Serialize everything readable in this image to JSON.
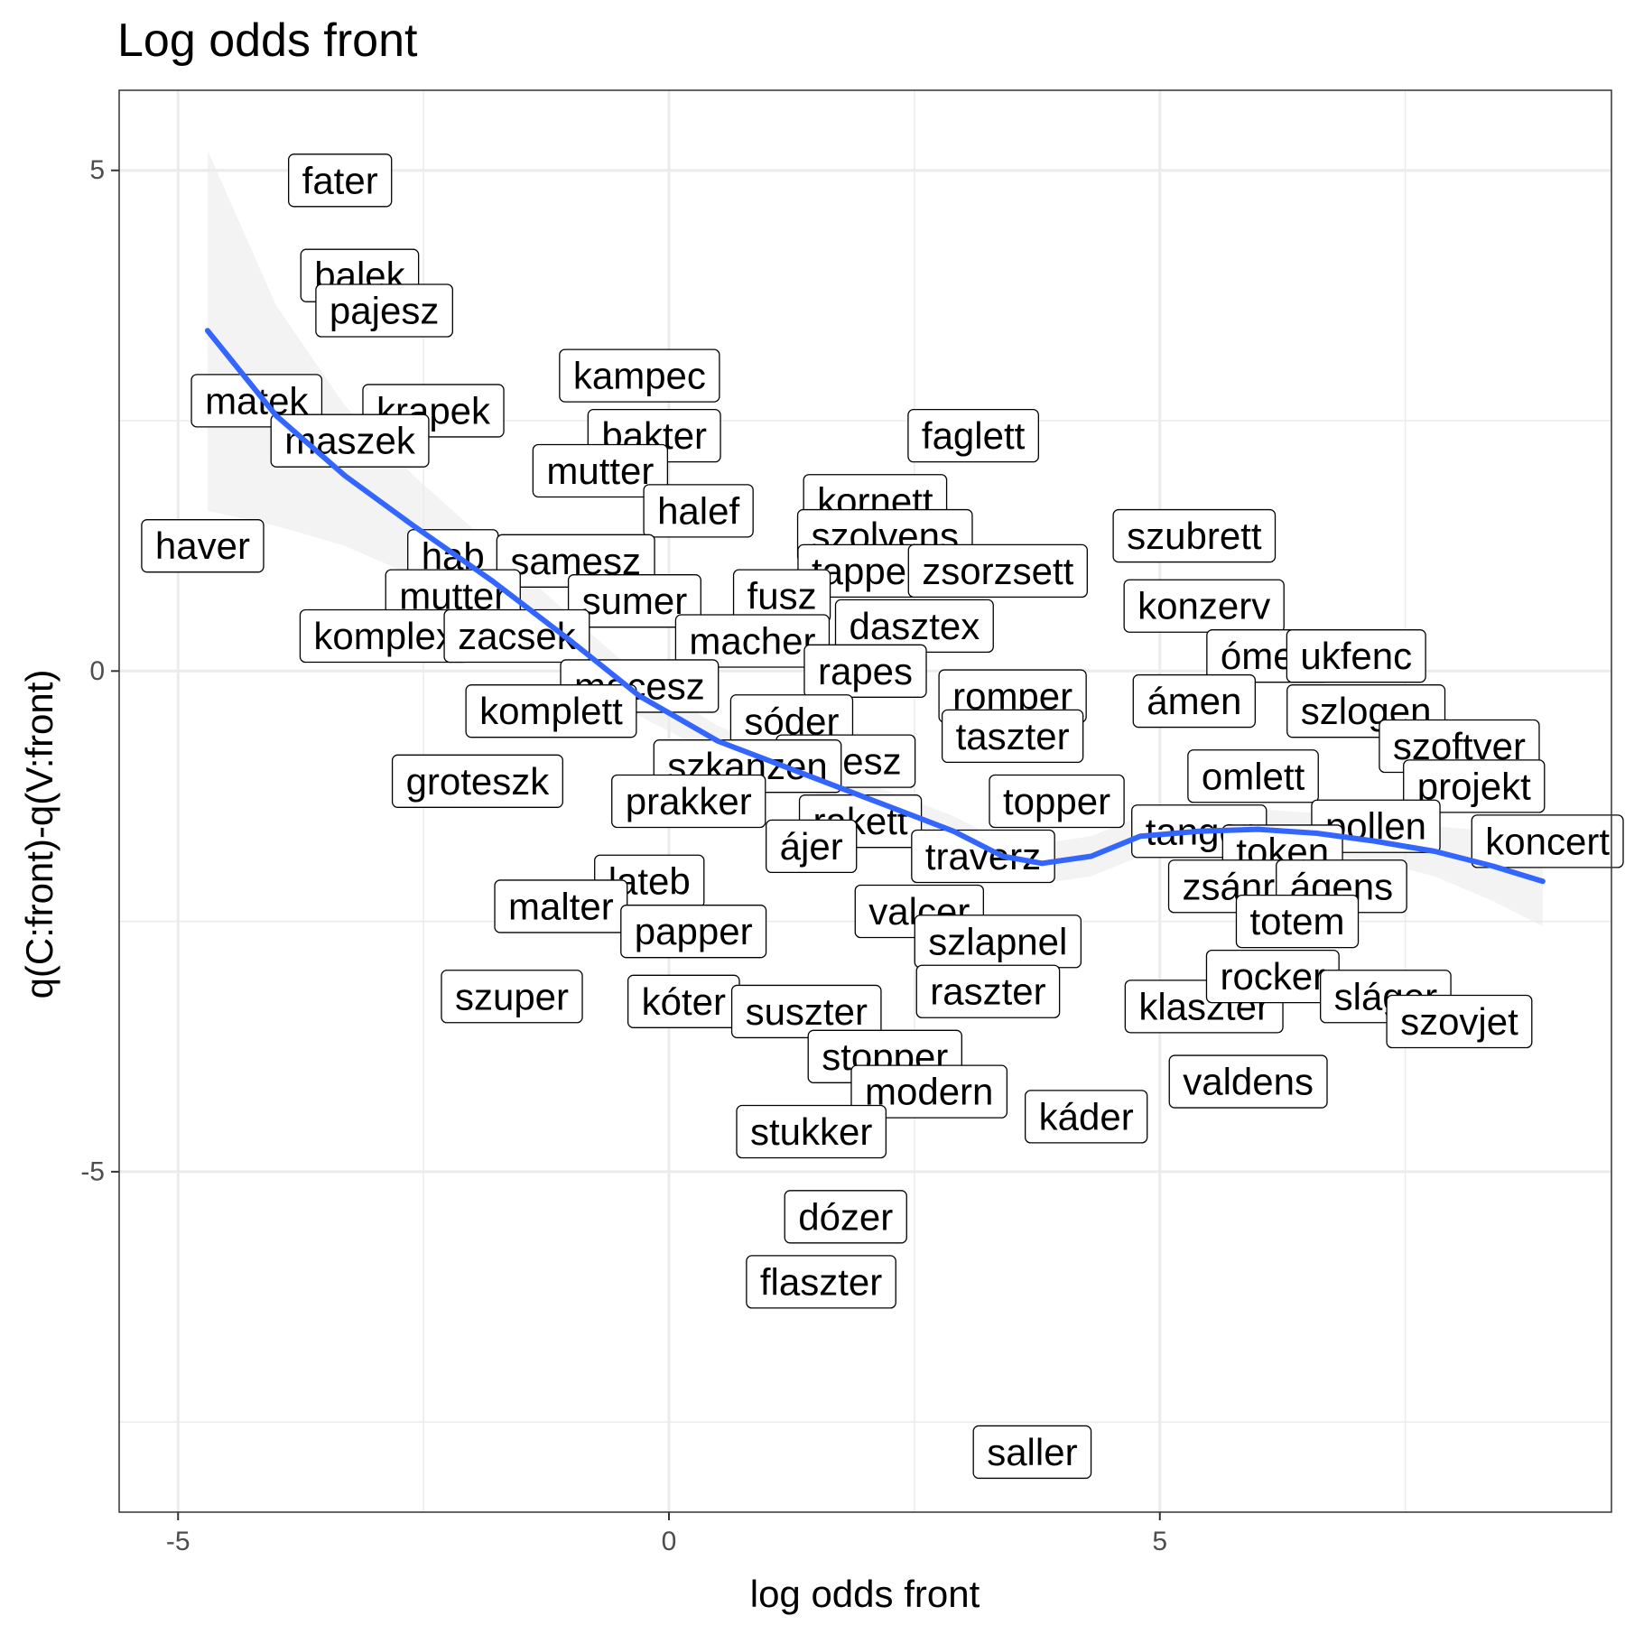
{
  "chart_data": {
    "type": "scatter",
    "title": "Log odds front",
    "xlabel": "log odds front",
    "ylabel": "q(C:front)-q(V:front)",
    "xlim": [
      -5.6,
      9.6
    ],
    "ylim": [
      -8.4,
      5.8
    ],
    "xticks": [
      -5,
      0,
      5
    ],
    "yticks": [
      5,
      0,
      -5
    ],
    "xtick_labels": [
      "-5",
      "0",
      "5"
    ],
    "ytick_labels": [
      "5",
      "0",
      "-5"
    ],
    "grid": true,
    "colors": {
      "smooth": "#3366ff",
      "ribbon": "#ebebeb",
      "grid": "#ebebeb",
      "frame": "#333333"
    },
    "points": [
      {
        "label": "fater",
        "x": -3.35,
        "y": 4.9
      },
      {
        "label": "balek",
        "x": -3.15,
        "y": 3.95
      },
      {
        "label": "pajesz",
        "x": -2.9,
        "y": 3.6
      },
      {
        "label": "kampec",
        "x": -0.3,
        "y": 2.95
      },
      {
        "label": "matek",
        "x": -4.2,
        "y": 2.7
      },
      {
        "label": "krapek",
        "x": -2.4,
        "y": 2.6
      },
      {
        "label": "maszek",
        "x": -3.25,
        "y": 2.3
      },
      {
        "label": "bakter",
        "x": -0.15,
        "y": 2.35
      },
      {
        "label": "faglett",
        "x": 3.1,
        "y": 2.35
      },
      {
        "label": "mutter",
        "x": -0.7,
        "y": 2.0
      },
      {
        "label": "kornett",
        "x": 2.1,
        "y": 1.7
      },
      {
        "label": "halef",
        "x": 0.3,
        "y": 1.6
      },
      {
        "label": "haver",
        "x": -4.75,
        "y": 1.25
      },
      {
        "label": "szolvens",
        "x": 2.2,
        "y": 1.35
      },
      {
        "label": "szubrett",
        "x": 5.35,
        "y": 1.35
      },
      {
        "label": "hab",
        "x": -2.2,
        "y": 1.15
      },
      {
        "label": "samesz",
        "x": -0.95,
        "y": 1.1
      },
      {
        "label": "tapper",
        "x": 2.0,
        "y": 1.0
      },
      {
        "label": "zsorzsett",
        "x": 3.35,
        "y": 1.0
      },
      {
        "label": "mutter",
        "x": -2.2,
        "y": 0.75
      },
      {
        "label": "sumer",
        "x": -0.35,
        "y": 0.7
      },
      {
        "label": "fusz",
        "x": 1.15,
        "y": 0.75
      },
      {
        "label": "konzerv",
        "x": 5.45,
        "y": 0.65
      },
      {
        "label": "komplex",
        "x": -2.9,
        "y": 0.35
      },
      {
        "label": "zacsek",
        "x": -1.55,
        "y": 0.35
      },
      {
        "label": "macher",
        "x": 0.85,
        "y": 0.3
      },
      {
        "label": "dasztex",
        "x": 2.5,
        "y": 0.45
      },
      {
        "label": "ómen",
        "x": 6.1,
        "y": 0.15
      },
      {
        "label": "ukfenc",
        "x": 7.0,
        "y": 0.15
      },
      {
        "label": "rapes",
        "x": 2.0,
        "y": 0.0
      },
      {
        "label": "macesz",
        "x": -0.3,
        "y": -0.15
      },
      {
        "label": "ámen",
        "x": 5.35,
        "y": -0.3
      },
      {
        "label": "romper",
        "x": 3.5,
        "y": -0.25
      },
      {
        "label": "komplett",
        "x": -1.2,
        "y": -0.4
      },
      {
        "label": "szlogen",
        "x": 7.1,
        "y": -0.4
      },
      {
        "label": "sóder",
        "x": 1.25,
        "y": -0.5
      },
      {
        "label": "taszter",
        "x": 3.5,
        "y": -0.65
      },
      {
        "label": "szoftver",
        "x": 8.05,
        "y": -0.75
      },
      {
        "label": "tábesz",
        "x": 1.8,
        "y": -0.9
      },
      {
        "label": "szkanzen",
        "x": 0.8,
        "y": -0.95
      },
      {
        "label": "omlett",
        "x": 5.95,
        "y": -1.05
      },
      {
        "label": "groteszk",
        "x": -1.95,
        "y": -1.1
      },
      {
        "label": "projekt",
        "x": 8.2,
        "y": -1.15
      },
      {
        "label": "topper",
        "x": 3.95,
        "y": -1.3
      },
      {
        "label": "prakker",
        "x": 0.2,
        "y": -1.3
      },
      {
        "label": "rakett",
        "x": 1.95,
        "y": -1.5
      },
      {
        "label": "pollen",
        "x": 7.2,
        "y": -1.55
      },
      {
        "label": "tanger",
        "x": 5.4,
        "y": -1.6
      },
      {
        "label": "ájer",
        "x": 1.45,
        "y": -1.75
      },
      {
        "label": "traverz",
        "x": 3.2,
        "y": -1.85
      },
      {
        "label": "koncert",
        "x": 9.0,
        "y": -1.7
      },
      {
        "label": "token",
        "x": 6.25,
        "y": -1.8
      },
      {
        "label": "lateb",
        "x": -0.2,
        "y": -2.1
      },
      {
        "label": "zsánr",
        "x": 5.7,
        "y": -2.15
      },
      {
        "label": "ágens",
        "x": 6.85,
        "y": -2.15
      },
      {
        "label": "malter",
        "x": -1.1,
        "y": -2.35
      },
      {
        "label": "valcer",
        "x": 2.55,
        "y": -2.4
      },
      {
        "label": "papper",
        "x": 0.25,
        "y": -2.6
      },
      {
        "label": "totem",
        "x": 6.4,
        "y": -2.5
      },
      {
        "label": "szlapnel",
        "x": 3.35,
        "y": -2.7
      },
      {
        "label": "szuper",
        "x": -1.6,
        "y": -3.25
      },
      {
        "label": "kóter",
        "x": 0.15,
        "y": -3.3
      },
      {
        "label": "suszter",
        "x": 1.4,
        "y": -3.4
      },
      {
        "label": "raszter",
        "x": 3.25,
        "y": -3.2
      },
      {
        "label": "klaszter",
        "x": 5.45,
        "y": -3.35
      },
      {
        "label": "rocker",
        "x": 6.15,
        "y": -3.05
      },
      {
        "label": "sláger",
        "x": 7.3,
        "y": -3.25
      },
      {
        "label": "szovjet",
        "x": 8.05,
        "y": -3.5
      },
      {
        "label": "stopper",
        "x": 2.2,
        "y": -3.85
      },
      {
        "label": "valdens",
        "x": 5.9,
        "y": -4.1
      },
      {
        "label": "modern",
        "x": 2.65,
        "y": -4.2
      },
      {
        "label": "káder",
        "x": 4.25,
        "y": -4.45
      },
      {
        "label": "stukker",
        "x": 1.45,
        "y": -4.6
      },
      {
        "label": "dózer",
        "x": 1.8,
        "y": -5.45
      },
      {
        "label": "flaszter",
        "x": 1.55,
        "y": -6.1
      },
      {
        "label": "saller",
        "x": 3.7,
        "y": -7.8
      }
    ],
    "smooth": {
      "x": [
        -4.7,
        -4.0,
        -3.3,
        -2.6,
        -1.8,
        -1.0,
        -0.3,
        0.5,
        1.3,
        2.1,
        2.9,
        3.4,
        3.8,
        4.3,
        4.8,
        5.4,
        6.0,
        6.6,
        7.2,
        7.8,
        8.4,
        8.9
      ],
      "y": [
        3.4,
        2.55,
        1.95,
        1.45,
        0.9,
        0.3,
        -0.25,
        -0.7,
        -1.0,
        -1.3,
        -1.6,
        -1.85,
        -1.92,
        -1.85,
        -1.65,
        -1.6,
        -1.58,
        -1.62,
        -1.7,
        -1.8,
        -1.95,
        -2.1
      ],
      "lower": [
        1.6,
        1.45,
        1.25,
        0.95,
        0.55,
        0.05,
        -0.45,
        -0.85,
        -1.15,
        -1.45,
        -1.75,
        -2.0,
        -2.12,
        -2.05,
        -1.85,
        -1.8,
        -1.78,
        -1.82,
        -1.9,
        -2.05,
        -2.3,
        -2.55
      ],
      "upper": [
        5.2,
        3.65,
        2.65,
        1.95,
        1.25,
        0.55,
        -0.05,
        -0.55,
        -0.85,
        -1.15,
        -1.45,
        -1.7,
        -1.72,
        -1.65,
        -1.45,
        -1.4,
        -1.38,
        -1.42,
        -1.5,
        -1.55,
        -1.6,
        -1.65
      ]
    }
  }
}
